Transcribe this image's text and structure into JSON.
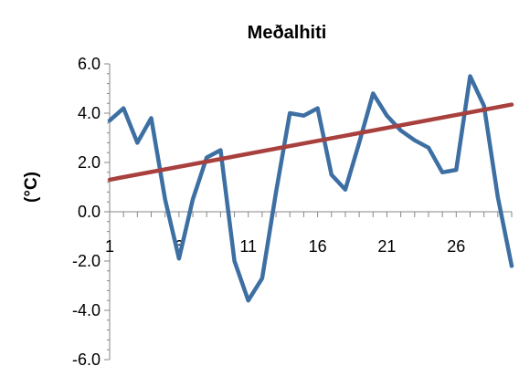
{
  "chart_data": {
    "type": "line",
    "title": "Meðalhiti",
    "xlabel": "",
    "ylabel": "(°C)",
    "ylim": [
      -6,
      6
    ],
    "yticks": [
      6,
      4,
      2,
      0,
      -2,
      -4,
      -6
    ],
    "ytick_labels": [
      "6.0",
      "4.0",
      "2.0",
      "0.0",
      "-2.0",
      "-4.0",
      "-6.0"
    ],
    "xlim": [
      1,
      30
    ],
    "xtick_labels": [
      "1",
      "6",
      "11",
      "16",
      "21",
      "26"
    ],
    "xtick_values": [
      1,
      6,
      11,
      16,
      21,
      26
    ],
    "grid": false,
    "legend": "none",
    "series": [
      {
        "color": "#3d6fa3",
        "x": [
          1,
          2,
          3,
          4,
          5,
          6,
          7,
          8,
          9,
          10,
          11,
          12,
          13,
          14,
          15,
          16,
          17,
          18,
          19,
          20,
          21,
          22,
          23,
          24,
          25,
          26,
          27,
          28,
          29,
          30
        ],
        "values": [
          3.7,
          4.2,
          2.8,
          3.8,
          0.5,
          -1.9,
          0.5,
          2.2,
          2.5,
          -2.0,
          -3.6,
          -2.7,
          0.8,
          4.0,
          3.9,
          4.2,
          1.5,
          0.9,
          2.8,
          4.8,
          3.9,
          3.3,
          2.9,
          2.6,
          1.6,
          1.7,
          5.5,
          4.3,
          0.6,
          -2.2
        ]
      },
      {
        "color": "#a8403e",
        "x": [
          1,
          30
        ],
        "values": [
          1.3,
          4.35
        ]
      }
    ]
  }
}
